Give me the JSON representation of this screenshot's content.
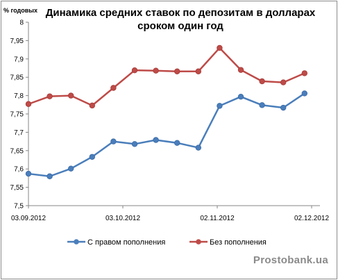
{
  "chart_data": {
    "type": "line",
    "title_line1": "Динамика средних ставок по депозитам в долларах",
    "title_line2": "сроком один год",
    "ylabel": "% годовых",
    "ylim": [
      7.5,
      8.0
    ],
    "yticks": [
      "7,5",
      "7,55",
      "7,6",
      "7,65",
      "7,7",
      "7,75",
      "7,8",
      "7,85",
      "7,9",
      "7,95",
      "8"
    ],
    "xticks": [
      "03.09.2012",
      "03.10.2012",
      "02.11.2012",
      "02.12.2012"
    ],
    "grid": false,
    "legend_position": "bottom",
    "series": [
      {
        "name": "С правом пополнения",
        "color": "#4a7ebb",
        "values": [
          7.587,
          7.58,
          7.601,
          7.633,
          7.675,
          7.668,
          7.679,
          7.671,
          7.658,
          7.772,
          7.797,
          7.774,
          7.767,
          7.806
        ]
      },
      {
        "name": "Без пополнения",
        "color": "#be4b48",
        "values": [
          7.777,
          7.798,
          7.8,
          7.773,
          7.821,
          7.869,
          7.868,
          7.866,
          7.866,
          7.93,
          7.87,
          7.839,
          7.836,
          7.861
        ]
      }
    ]
  },
  "watermark": "Prostobank.ua"
}
